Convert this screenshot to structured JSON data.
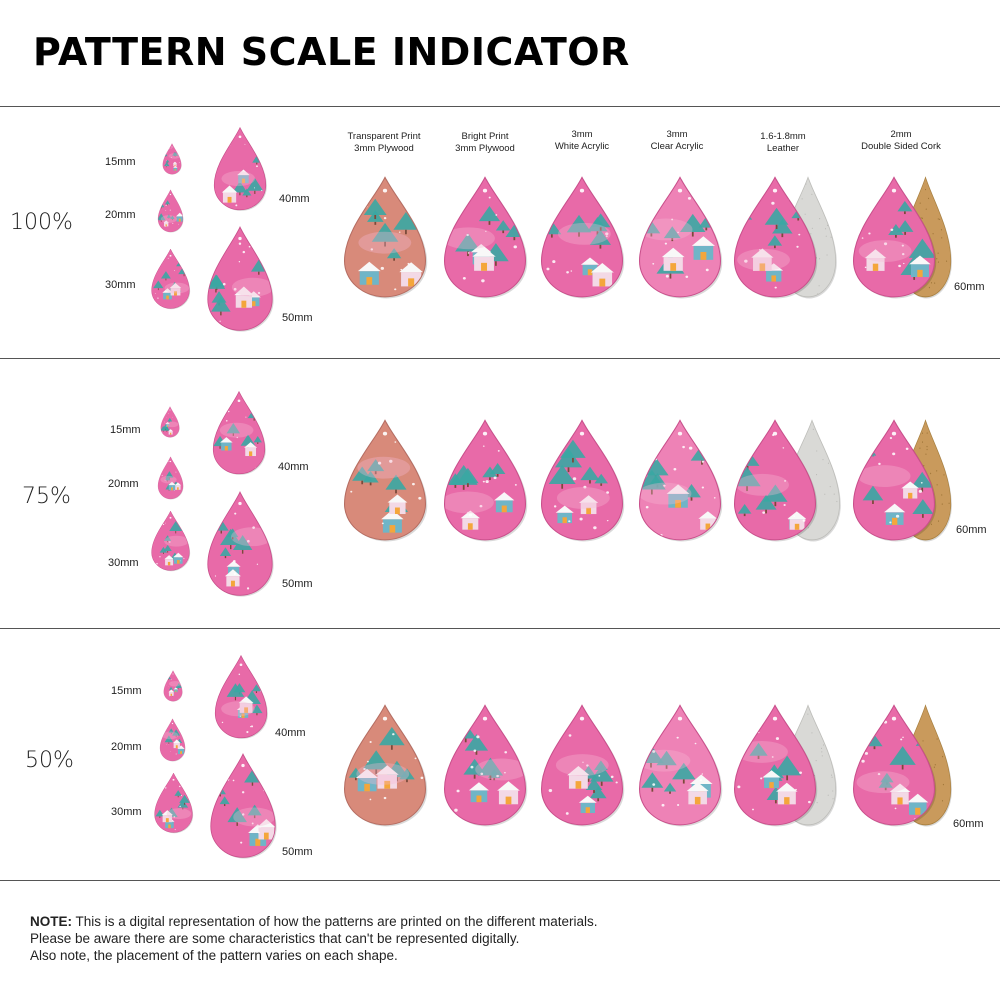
{
  "title": "PATTERN SCALE INDICATOR",
  "materials": [
    {
      "line1": "Transparent Print",
      "line2": "3mm Plywood"
    },
    {
      "line1": "Bright Print",
      "line2": "3mm Plywood"
    },
    {
      "line1": "3mm",
      "line2": "White Acrylic"
    },
    {
      "line1": "3mm",
      "line2": "Clear Acrylic"
    },
    {
      "line1": "1.6-1.8mm",
      "line2": "Leather"
    },
    {
      "line1": "2mm",
      "line2": "Double Sided Cork"
    }
  ],
  "sizes": [
    "15mm",
    "20mm",
    "30mm",
    "40mm",
    "50mm"
  ],
  "size_60": "60mm",
  "scales": [
    "100%",
    "75%",
    "50%"
  ],
  "colors": {
    "pink": "#e86aa8",
    "light_pink": "#f7b7d4",
    "teal": "#3aa7a3",
    "wood": "#d88a7a",
    "leather_back": "#d9d9d6",
    "cork": "#c99a5c"
  },
  "note": {
    "bold": "NOTE:",
    "line1": " This is a digital representation of how the patterns are printed on the different materials.",
    "line2": "Please be aware there are some characteristics that can't be represented digitally.",
    "line3": "Also note, the placement of the pattern varies on each shape."
  }
}
